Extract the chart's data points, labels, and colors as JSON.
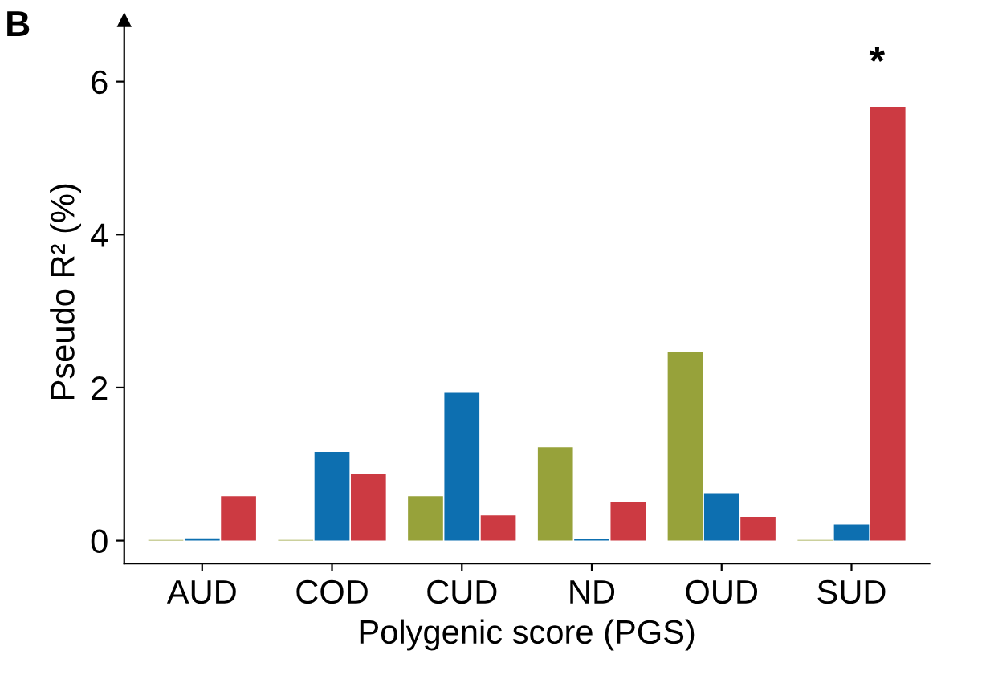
{
  "chart_data": {
    "type": "bar",
    "xlabel": "Polygenic score (PGS)",
    "ylabel": "Pseudo R² (%)",
    "categories": [
      "AUD",
      "COD",
      "CUD",
      "ND",
      "OUD",
      "SUD"
    ],
    "series": [
      {
        "color": "#97a23a",
        "values": [
          0.01,
          0.01,
          0.58,
          1.22,
          2.46,
          0.01
        ]
      },
      {
        "color": "#0d6fb0",
        "values": [
          0.03,
          1.16,
          1.93,
          0.02,
          0.62,
          0.21
        ]
      },
      {
        "color": "#cc3a42",
        "values": [
          0.58,
          0.87,
          0.33,
          0.5,
          0.31,
          5.67
        ]
      }
    ],
    "ylim": [
      -0.3,
      6.8
    ],
    "yticks": [
      0,
      2,
      4,
      6
    ],
    "grid": false,
    "legend": false,
    "annotations": [
      "B",
      "*"
    ]
  }
}
